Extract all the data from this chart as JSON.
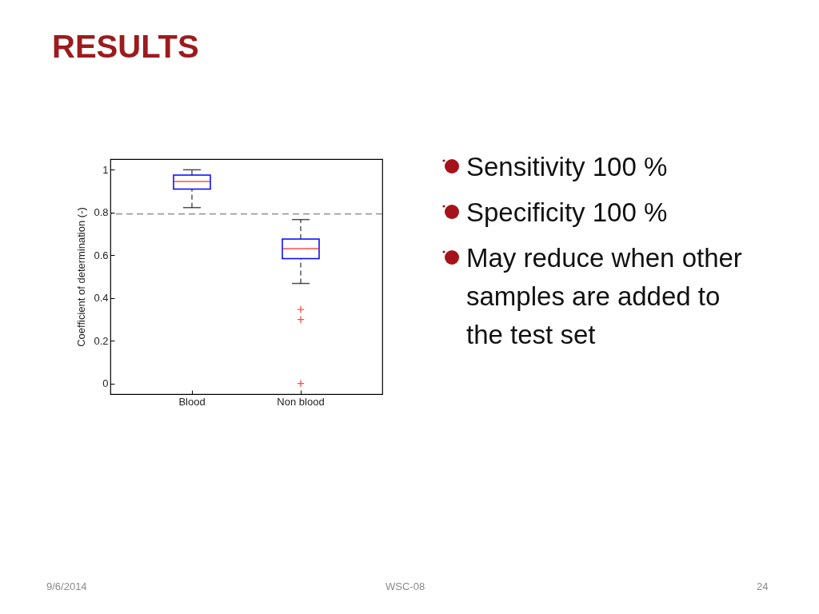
{
  "chart_data": {
    "type": "box",
    "title": "RESULTS",
    "ylabel": "Coefficient of determination (-)",
    "categories": [
      "Blood",
      "Non blood"
    ],
    "series": [
      {
        "color": "#0000ff",
        "boxes": [
          {
            "low": 0.823,
            "q1": 0.91,
            "median": 0.945,
            "q3": 0.975,
            "high": 1.0
          },
          {
            "low": 0.468,
            "q1": 0.584,
            "median": 0.631,
            "q3": 0.676,
            "high": 0.767,
            "outliers": [
              0.346,
              0.299,
              0
            ]
          }
        ]
      }
    ],
    "ylim": [
      -0.05,
      1.05
    ],
    "yticks": [
      0,
      0.2,
      0.4,
      0.6,
      0.8,
      1
    ],
    "grid": false,
    "ref_lines": [
      {
        "axis": "y",
        "value": 0.793,
        "color": "#808080",
        "line_style": "dashed"
      }
    ],
    "annotations": [
      "Sensitivity 100 %",
      "Specificity 100 %",
      "May reduce when other samples are added to the test set",
      "9/6/2014",
      "WSC-08",
      "24"
    ]
  }
}
